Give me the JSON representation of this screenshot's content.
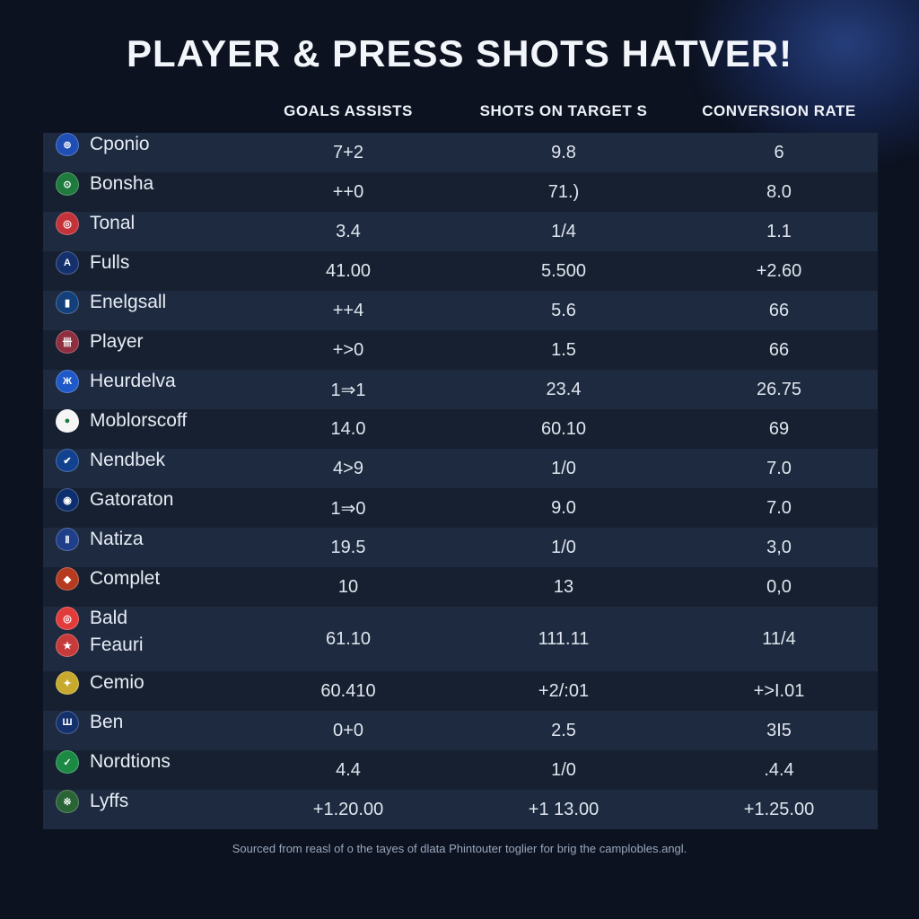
{
  "title": "PLAYER & PRESS SHOTS HATVER!",
  "footer": "Sourced from reasl of o the tayes of dlata Phintouter toglier for brig the camplobles.angl.",
  "columns": [
    "",
    "GOALS ASSISTS",
    "SHOTS ON TARGET S",
    "CONVERSION RATE"
  ],
  "colors": {
    "bg": "#0c1220",
    "row_odd": "#1d2a3f",
    "row_even": "#162030",
    "text": "#e5e9f0",
    "header_text": "#eef2f8",
    "footer_text": "#99a7bb"
  },
  "rows": [
    {
      "badge_bg": "#1f4fb5",
      "badge_txt": "⊚",
      "name": "Cponio",
      "ga": "7+2",
      "sot": "9.8",
      "cr": "6"
    },
    {
      "badge_bg": "#1f7a3d",
      "badge_txt": "⊙",
      "name": "Bonsha",
      "ga": "++0",
      "sot": "71.)",
      "cr": "8.0"
    },
    {
      "badge_bg": "#c4333a",
      "badge_txt": "◎",
      "name": "Tonal",
      "ga": "3.4",
      "sot": "1/4",
      "cr": "1.1"
    },
    {
      "badge_bg": "#14316e",
      "badge_txt": "A",
      "name": "Fulls",
      "ga": "41.00",
      "sot": "5.500",
      "cr": "+2.60"
    },
    {
      "badge_bg": "#13407a",
      "badge_txt": "▮",
      "name": "Enelgsall",
      "ga": "++4",
      "sot": "5.6",
      "cr": "66"
    },
    {
      "badge_bg": "#8f2e3e",
      "badge_txt": "卌",
      "name": "Player",
      "ga": "+>0",
      "sot": "1.5",
      "cr": "66"
    },
    {
      "badge_bg": "#1f58c9",
      "badge_txt": "Ж",
      "name": "Heurdelva",
      "ga": "1⇒1",
      "sot": "23.4",
      "cr": "26.75"
    },
    {
      "badge_bg": "#f5f5f5",
      "badge_txt": "●",
      "badge_fg": "#1a7a3a",
      "name": "Moblorscoff",
      "ga": "14.0",
      "sot": "60.10",
      "cr": "69"
    },
    {
      "badge_bg": "#12418f",
      "badge_txt": "✔",
      "name": "Nendbek",
      "ga": "4>9",
      "sot": "1/0",
      "cr": "7.0"
    },
    {
      "badge_bg": "#0e2f6f",
      "badge_txt": "◉",
      "name": "Gatoraton",
      "ga": "1⇒0",
      "sot": "9.0",
      "cr": "7.0"
    },
    {
      "badge_bg": "#1f3f8b",
      "badge_txt": "Ⅱ",
      "name": "Natiza",
      "ga": "19.5",
      "sot": "1/0",
      "cr": "3,0"
    },
    {
      "badge_bg": "#b53a1f",
      "badge_txt": "◆",
      "name": "Complet",
      "ga": "10",
      "sot": "13",
      "cr": "0,0"
    },
    {
      "double": true,
      "line1": {
        "badge_bg": "#e23b3b",
        "badge_txt": "◎",
        "name": "Bald"
      },
      "line2": {
        "badge_bg": "#c73a3a",
        "badge_txt": "★",
        "name": "Feauri"
      },
      "ga": "61.10",
      "sot": "111.11",
      "cr": "11/4"
    },
    {
      "badge_bg": "#c7a92e",
      "badge_txt": "✦",
      "name": "Cemio",
      "ga": "60.410",
      "sot": "+2/:01",
      "cr": "+>I.01"
    },
    {
      "badge_bg": "#14316e",
      "badge_txt": "Ш",
      "name": "Ben",
      "ga": "0+0",
      "sot": "2.5",
      "cr": "3I5"
    },
    {
      "badge_bg": "#1c8a44",
      "badge_txt": "✓",
      "name": "Nordtions",
      "ga": "4.4",
      "sot": "1/0",
      "cr": ".4.4"
    },
    {
      "badge_bg": "#2a6335",
      "badge_txt": "※",
      "name": "Lyffs",
      "ga": "+1.20.00",
      "sot": "+1 13.00",
      "cr": "+1.25.00"
    }
  ]
}
